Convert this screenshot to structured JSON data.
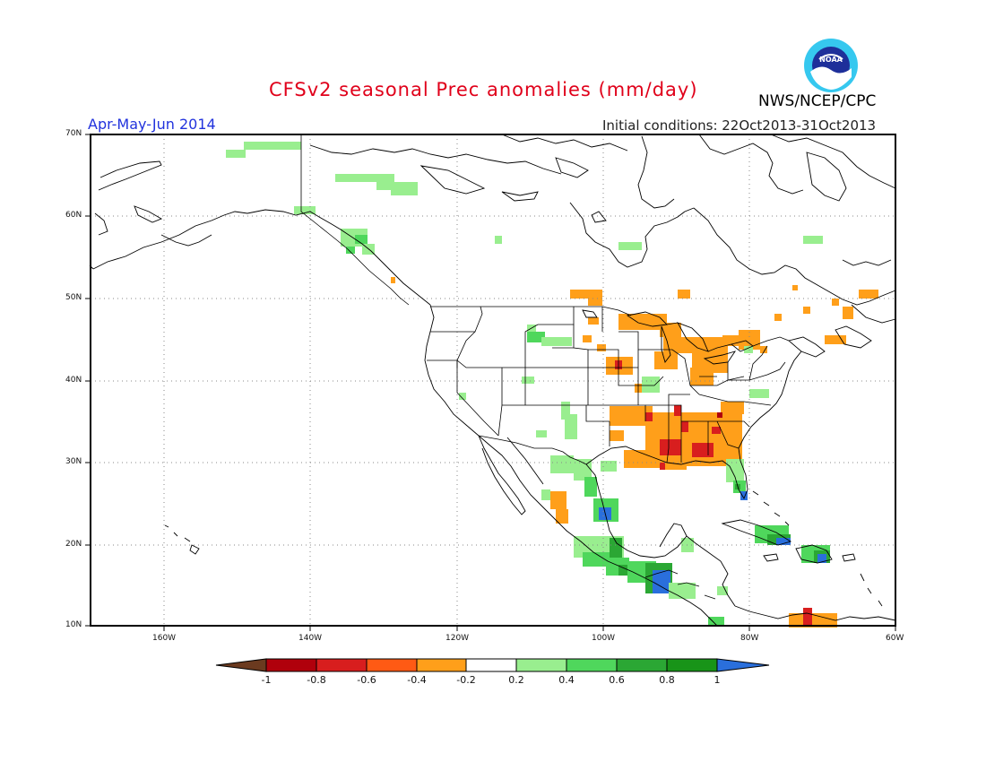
{
  "header": {
    "title": "CFSv2 seasonal Prec anomalies (mm/day)",
    "period": "Apr-May-Jun 2014",
    "initial_conditions": "Initial conditions: 22Oct2013-31Oct2013",
    "agency": "NWS/NCEP/CPC",
    "logo_text": "NOAA"
  },
  "map": {
    "lat_labels": [
      "70N",
      "60N",
      "50N",
      "40N",
      "30N",
      "20N",
      "10N"
    ],
    "lon_labels": [
      "160W",
      "140W",
      "120W",
      "100W",
      "80W",
      "60W"
    ],
    "extent": {
      "lon": [
        -170,
        -60
      ],
      "lat": [
        10,
        70
      ]
    },
    "gridlines": "dotted"
  },
  "colorbar": {
    "labels": [
      "-1",
      "-0.8",
      "-0.6",
      "-0.4",
      "-0.2",
      "0.2",
      "0.4",
      "0.6",
      "0.8",
      "1"
    ],
    "colors": [
      "#6b3a1f",
      "#b0000c",
      "#d81e1e",
      "#ff5a14",
      "#ff9f1a",
      "#ffffff",
      "#99ee8f",
      "#4fd75c",
      "#2ba734",
      "#189418",
      "#2a6fdc"
    ]
  }
}
